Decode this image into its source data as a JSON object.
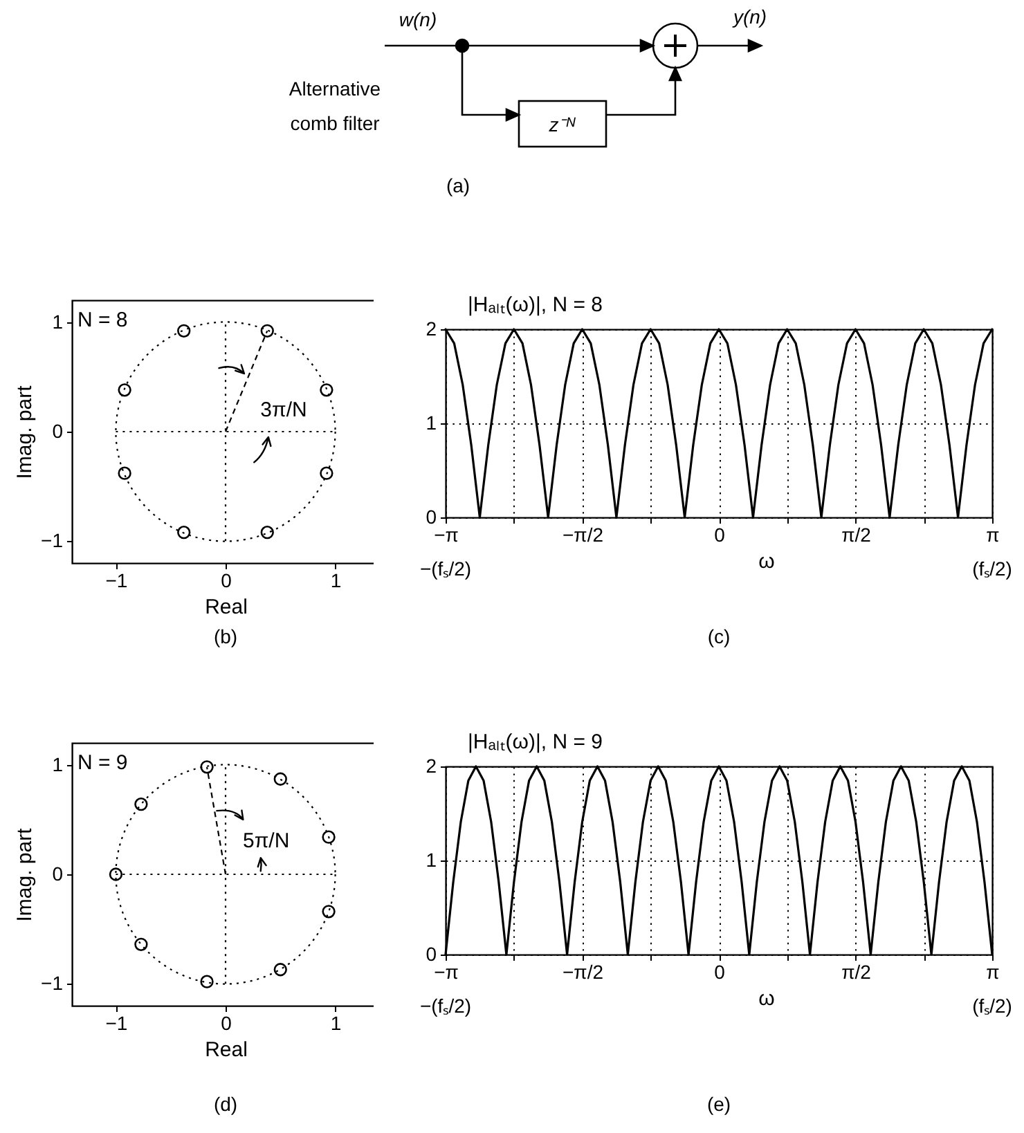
{
  "chart_data": [
    {
      "type": "other",
      "annotations": [
        "w(n)",
        "y(n)",
        "Alternative comb filter",
        "z⁻ᴺ",
        "(a)"
      ]
    },
    {
      "type": "scatter",
      "title": "N = 8",
      "xlabel": "Real",
      "ylabel": "Imag. part",
      "xlim": [
        -1.4,
        1.4
      ],
      "ylim": [
        -1.2,
        1.2
      ],
      "xticks": [
        -1,
        0,
        1
      ],
      "yticks": [
        -1,
        0,
        1
      ],
      "annotations": [
        "(b)",
        "3π/N"
      ],
      "series": [
        {
          "marker": "circle",
          "color": "#000000",
          "x": [
            0.92,
            0.38,
            -0.38,
            -0.92,
            -0.92,
            -0.38,
            0.38,
            0.92
          ],
          "values": [
            0.38,
            0.92,
            0.92,
            0.38,
            -0.38,
            -0.92,
            -0.92,
            -0.38
          ]
        }
      ]
    },
    {
      "type": "line",
      "title": "|Hₐₗₜ(ω)|,  N = 8",
      "xlabel": "ω",
      "xlim": [
        -3.142,
        3.142
      ],
      "ylim": [
        0,
        2
      ],
      "xticks": [
        {
          "value": -3.142,
          "label": "−π"
        },
        {
          "value": -2.356,
          "label": null
        },
        {
          "value": -1.571,
          "label": "−π/2"
        },
        {
          "value": -0.785,
          "label": null
        },
        0,
        {
          "value": 0.785,
          "label": null
        },
        {
          "value": 1.571,
          "label": "π/2"
        },
        {
          "value": 2.356,
          "label": null
        },
        {
          "value": 3.142,
          "label": "π"
        }
      ],
      "yticks": [
        0,
        1,
        2
      ],
      "grid": true,
      "line_style": "solid",
      "annotations": [
        "(c)",
        "−(fₛ/2)",
        "(fₛ/2)"
      ],
      "series": [
        {
          "color": "#000000",
          "x": [
            -3.142,
            -3.043,
            -2.945,
            -2.847,
            -2.749,
            -2.651,
            -2.553,
            -2.454,
            -2.356,
            -2.258,
            -2.16,
            -2.062,
            -1.963,
            -1.865,
            -1.767,
            -1.669,
            -1.571,
            -1.473,
            -1.374,
            -1.276,
            -1.178,
            -1.08,
            -0.982,
            -0.884,
            -0.785,
            -0.687,
            -0.589,
            -0.491,
            -0.393,
            -0.295,
            -0.196,
            -0.098,
            0,
            0.098,
            0.196,
            0.295,
            0.393,
            0.491,
            0.589,
            0.687,
            0.785,
            0.884,
            0.982,
            1.08,
            1.178,
            1.276,
            1.374,
            1.473,
            1.571,
            1.669,
            1.767,
            1.865,
            1.963,
            2.062,
            2.16,
            2.258,
            2.356,
            2.454,
            2.553,
            2.651,
            2.749,
            2.847,
            2.945,
            3.043,
            3.142
          ],
          "values": [
            2,
            1.85,
            1.41,
            0.77,
            0,
            0.77,
            1.41,
            1.85,
            2,
            1.85,
            1.41,
            0.77,
            0,
            0.77,
            1.41,
            1.85,
            2,
            1.85,
            1.41,
            0.77,
            0,
            0.77,
            1.41,
            1.85,
            2,
            1.85,
            1.41,
            0.77,
            0,
            0.77,
            1.41,
            1.85,
            2,
            1.85,
            1.41,
            0.77,
            0,
            0.77,
            1.41,
            1.85,
            2,
            1.85,
            1.41,
            0.77,
            0,
            0.77,
            1.41,
            1.85,
            2,
            1.85,
            1.41,
            0.77,
            0,
            0.77,
            1.41,
            1.85,
            2,
            1.85,
            1.41,
            0.77,
            0,
            0.77,
            1.41,
            1.85,
            2
          ]
        }
      ]
    },
    {
      "type": "scatter",
      "title": "N = 9",
      "xlabel": "Real",
      "ylabel": "Imag. part",
      "xlim": [
        -1.4,
        1.4
      ],
      "ylim": [
        -1.2,
        1.2
      ],
      "xticks": [
        -1,
        0,
        1
      ],
      "yticks": [
        -1,
        0,
        1
      ],
      "annotations": [
        "(d)",
        "5π/N"
      ],
      "series": [
        {
          "marker": "circle",
          "color": "#000000",
          "x": [
            0.94,
            0.5,
            -0.17,
            -0.77,
            -1,
            -0.77,
            -0.17,
            0.5,
            0.94
          ],
          "values": [
            0.34,
            0.87,
            0.98,
            0.64,
            0,
            -0.64,
            -0.98,
            -0.87,
            -0.34
          ]
        }
      ]
    },
    {
      "type": "line",
      "title": "|Hₐₗₜ(ω)|,  N = 9",
      "xlabel": "ω",
      "xlim": [
        -3.142,
        3.142
      ],
      "ylim": [
        0,
        2
      ],
      "xticks": [
        {
          "value": -3.142,
          "label": "−π"
        },
        {
          "value": -2.356,
          "label": null
        },
        {
          "value": -1.571,
          "label": "−π/2"
        },
        {
          "value": -0.785,
          "label": null
        },
        0,
        {
          "value": 0.785,
          "label": null
        },
        {
          "value": 1.571,
          "label": "π/2"
        },
        {
          "value": 2.356,
          "label": null
        },
        {
          "value": 3.142,
          "label": "π"
        }
      ],
      "yticks": [
        0,
        1,
        2
      ],
      "grid": true,
      "line_style": "solid",
      "annotations": [
        "(e)",
        "−(fₛ/2)",
        "(fₛ/2)"
      ],
      "series": [
        {
          "color": "#000000",
          "x": [
            -3.142,
            -3.054,
            -2.967,
            -2.88,
            -2.793,
            -2.705,
            -2.618,
            -2.531,
            -2.443,
            -2.356,
            -2.269,
            -2.182,
            -2.094,
            -2.007,
            -1.92,
            -1.833,
            -1.745,
            -1.658,
            -1.571,
            -1.484,
            -1.396,
            -1.309,
            -1.222,
            -1.134,
            -1.047,
            -0.96,
            -0.873,
            -0.785,
            -0.698,
            -0.611,
            -0.524,
            -0.436,
            -0.349,
            -0.262,
            -0.175,
            -0.087,
            0,
            0.087,
            0.175,
            0.262,
            0.349,
            0.436,
            0.524,
            0.611,
            0.698,
            0.785,
            0.873,
            0.96,
            1.047,
            1.134,
            1.222,
            1.309,
            1.396,
            1.484,
            1.571,
            1.658,
            1.745,
            1.833,
            1.92,
            2.007,
            2.094,
            2.182,
            2.269,
            2.356,
            2.443,
            2.531,
            2.618,
            2.705,
            2.793,
            2.88,
            2.967,
            3.054,
            3.142
          ],
          "values": [
            0,
            0.77,
            1.41,
            1.85,
            2,
            1.85,
            1.41,
            0.77,
            0,
            0.77,
            1.41,
            1.85,
            2,
            1.85,
            1.41,
            0.77,
            0,
            0.77,
            1.41,
            1.85,
            2,
            1.85,
            1.41,
            0.77,
            0,
            0.77,
            1.41,
            1.85,
            2,
            1.85,
            1.41,
            0.77,
            0,
            0.77,
            1.41,
            1.85,
            2,
            1.85,
            1.41,
            0.77,
            0,
            0.77,
            1.41,
            1.85,
            2,
            1.85,
            1.41,
            0.77,
            0,
            0.77,
            1.41,
            1.85,
            2,
            1.85,
            1.41,
            0.77,
            0,
            0.77,
            1.41,
            1.85,
            2,
            1.85,
            1.41,
            0.77,
            0,
            0.77,
            1.41,
            1.85,
            2,
            1.85,
            1.41,
            0.77,
            0
          ]
        }
      ]
    }
  ]
}
